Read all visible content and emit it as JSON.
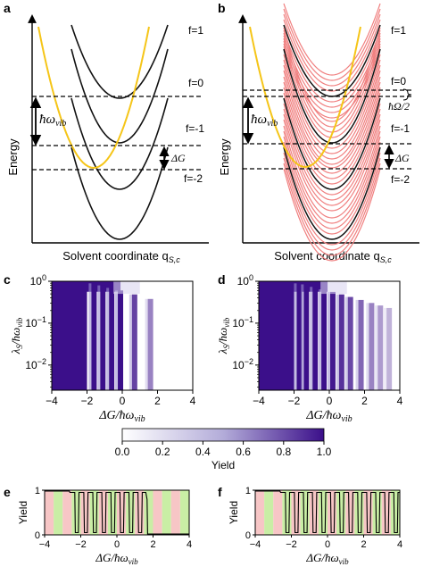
{
  "panels": {
    "a": {
      "letter": "a",
      "ylabel": "Energy",
      "xlabel": "Solvent coordinate q",
      "xlabel_sub": "S,c",
      "level_labels": [
        "f=1",
        "f=0",
        "f=-1",
        "f=-2"
      ],
      "hw_label": "ħω",
      "hw_sub": "vib",
      "dG_label": "ΔG"
    },
    "b": {
      "letter": "b",
      "ylabel": "Energy",
      "xlabel": "Solvent coordinate q",
      "xlabel_sub": "S,c",
      "level_labels": [
        "f=1",
        "f=0",
        "f=-1",
        "f=-2"
      ],
      "hw_label": "ħω",
      "hw_sub": "vib",
      "dG_label": "ΔG",
      "omega_label": "ħΩ/2"
    },
    "c": {
      "letter": "c"
    },
    "d": {
      "letter": "d"
    },
    "e": {
      "letter": "e"
    },
    "f": {
      "letter": "f"
    }
  },
  "colorbar": {
    "label": "Yield",
    "ticks": [
      "0.0",
      "0.2",
      "0.4",
      "0.6",
      "0.8",
      "1.0"
    ],
    "color_low": "#ffffff",
    "color_high": "#3b0f8a"
  },
  "chart_data": [
    {
      "type": "heatmap",
      "panel": "c",
      "xlabel": "ΔG/ħω_vib",
      "ylabel": "λ_S/ħω_vib",
      "xlim": [
        -4,
        4
      ],
      "ylim_log10": [
        -2.6,
        0
      ],
      "x_ticks": [
        "−4",
        "−2",
        "0",
        "2",
        "4"
      ],
      "y_ticks": [
        "10^0",
        "10^−1",
        "10^−2"
      ],
      "z_label": "Yield",
      "zlim": [
        0,
        1
      ]
    },
    {
      "type": "heatmap",
      "panel": "d",
      "xlabel": "ΔG/ħω_vib",
      "ylabel": "λ_S/ħω_vib",
      "xlim": [
        -4,
        4
      ],
      "ylim_log10": [
        -2.6,
        0
      ],
      "x_ticks": [
        "−4",
        "−2",
        "0",
        "2",
        "4"
      ],
      "y_ticks": [
        "10^0",
        "10^−1",
        "10^−2"
      ],
      "z_label": "Yield",
      "zlim": [
        0,
        1
      ]
    },
    {
      "type": "line",
      "panel": "e",
      "xlabel": "ΔG/ħω_vib",
      "ylabel": "Yield",
      "xlim": [
        -4,
        4
      ],
      "ylim": [
        0,
        1
      ],
      "x_ticks": [
        "−4",
        "−2",
        "0",
        "2",
        "4"
      ],
      "y_ticks": [
        "0",
        "1"
      ],
      "band_colors": [
        "#f7c6c6",
        "#c9eea5"
      ]
    },
    {
      "type": "line",
      "panel": "f",
      "xlabel": "ΔG/ħω_vib",
      "ylabel": "Yield",
      "xlim": [
        -4,
        4
      ],
      "ylim": [
        0,
        1
      ],
      "x_ticks": [
        "−4",
        "−2",
        "0",
        "2",
        "4"
      ],
      "y_ticks": [
        "0",
        "1"
      ],
      "band_colors": [
        "#f7c6c6",
        "#c9eea5"
      ]
    }
  ]
}
